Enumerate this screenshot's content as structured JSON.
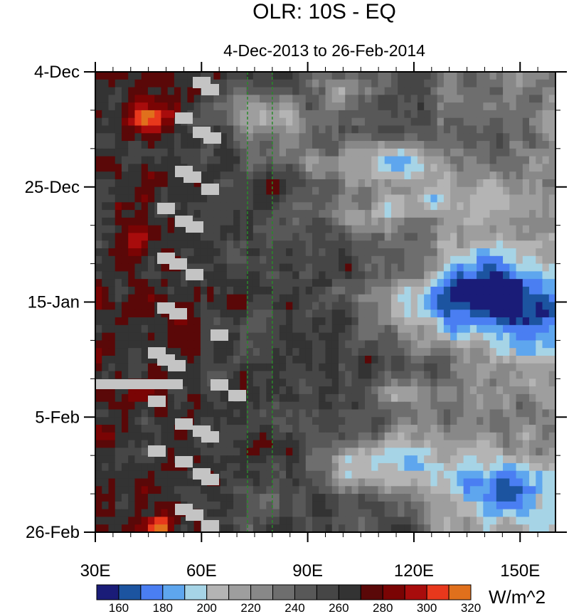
{
  "chart_data": {
    "type": "heatmap",
    "title": "OLR: 10S - EQ",
    "subtitle": "4-Dec-2013 to 26-Feb-2014",
    "x_ticks": [
      {
        "value": 30,
        "label": "30E"
      },
      {
        "value": 60,
        "label": "60E"
      },
      {
        "value": 90,
        "label": "90E"
      },
      {
        "value": 120,
        "label": "120E"
      },
      {
        "value": 150,
        "label": "150E"
      }
    ],
    "xlim": [
      30,
      160
    ],
    "y_ticks": [
      {
        "value": "2013-12-04",
        "label": "4-Dec"
      },
      {
        "value": "2013-12-25",
        "label": "25-Dec"
      },
      {
        "value": "2014-01-15",
        "label": "15-Jan"
      },
      {
        "value": "2014-02-05",
        "label": "5-Feb"
      },
      {
        "value": "2014-02-26",
        "label": "26-Feb"
      }
    ],
    "ylim": [
      "2013-12-04",
      "2014-02-26"
    ],
    "reference_lines_x": [
      73,
      80
    ],
    "colorbar": {
      "unit": "W/m^2",
      "levels": [
        160,
        170,
        180,
        190,
        200,
        210,
        220,
        230,
        240,
        250,
        260,
        270,
        280,
        290,
        300,
        310,
        320
      ],
      "labels": [
        {
          "value": 160,
          "label": "160"
        },
        {
          "value": 180,
          "label": "180"
        },
        {
          "value": 200,
          "label": "200"
        },
        {
          "value": 220,
          "label": "220"
        },
        {
          "value": 240,
          "label": "240"
        },
        {
          "value": 260,
          "label": "260"
        },
        {
          "value": 280,
          "label": "280"
        },
        {
          "value": 300,
          "label": "300"
        },
        {
          "value": 320,
          "label": "320"
        }
      ],
      "colors": [
        "#1a1c78",
        "#1c54a0",
        "#4a7ef2",
        "#5ea6ee",
        "#a6d4e6",
        "#b4b4b4",
        "#9e9e9e",
        "#888888",
        "#6e6e6e",
        "#585858",
        "#464646",
        "#333333",
        "#5a0808",
        "#7a0404",
        "#a80c0c",
        "#e8381c",
        "#e0701c"
      ]
    },
    "grid": false,
    "legend": "bottom"
  }
}
